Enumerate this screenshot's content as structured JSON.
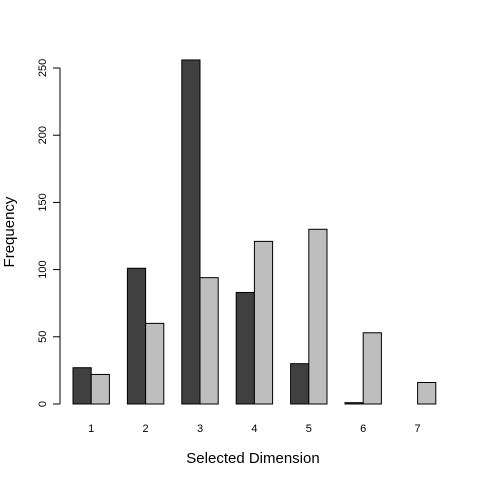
{
  "chart_data": {
    "type": "bar",
    "categories": [
      "1",
      "2",
      "3",
      "4",
      "5",
      "6",
      "7"
    ],
    "series": [
      {
        "values": [
          27,
          101,
          256,
          83,
          30,
          1,
          0
        ],
        "color": "#404040"
      },
      {
        "values": [
          22,
          60,
          94,
          121,
          130,
          53,
          16
        ],
        "color": "#bebebe"
      }
    ],
    "xlabel": "Selected Dimension",
    "ylabel": "Frequency",
    "ylim": [
      0,
      250
    ],
    "yticks": [
      "0",
      "50",
      "100",
      "150",
      "200",
      "250"
    ],
    "grid": false,
    "legend": "none"
  }
}
